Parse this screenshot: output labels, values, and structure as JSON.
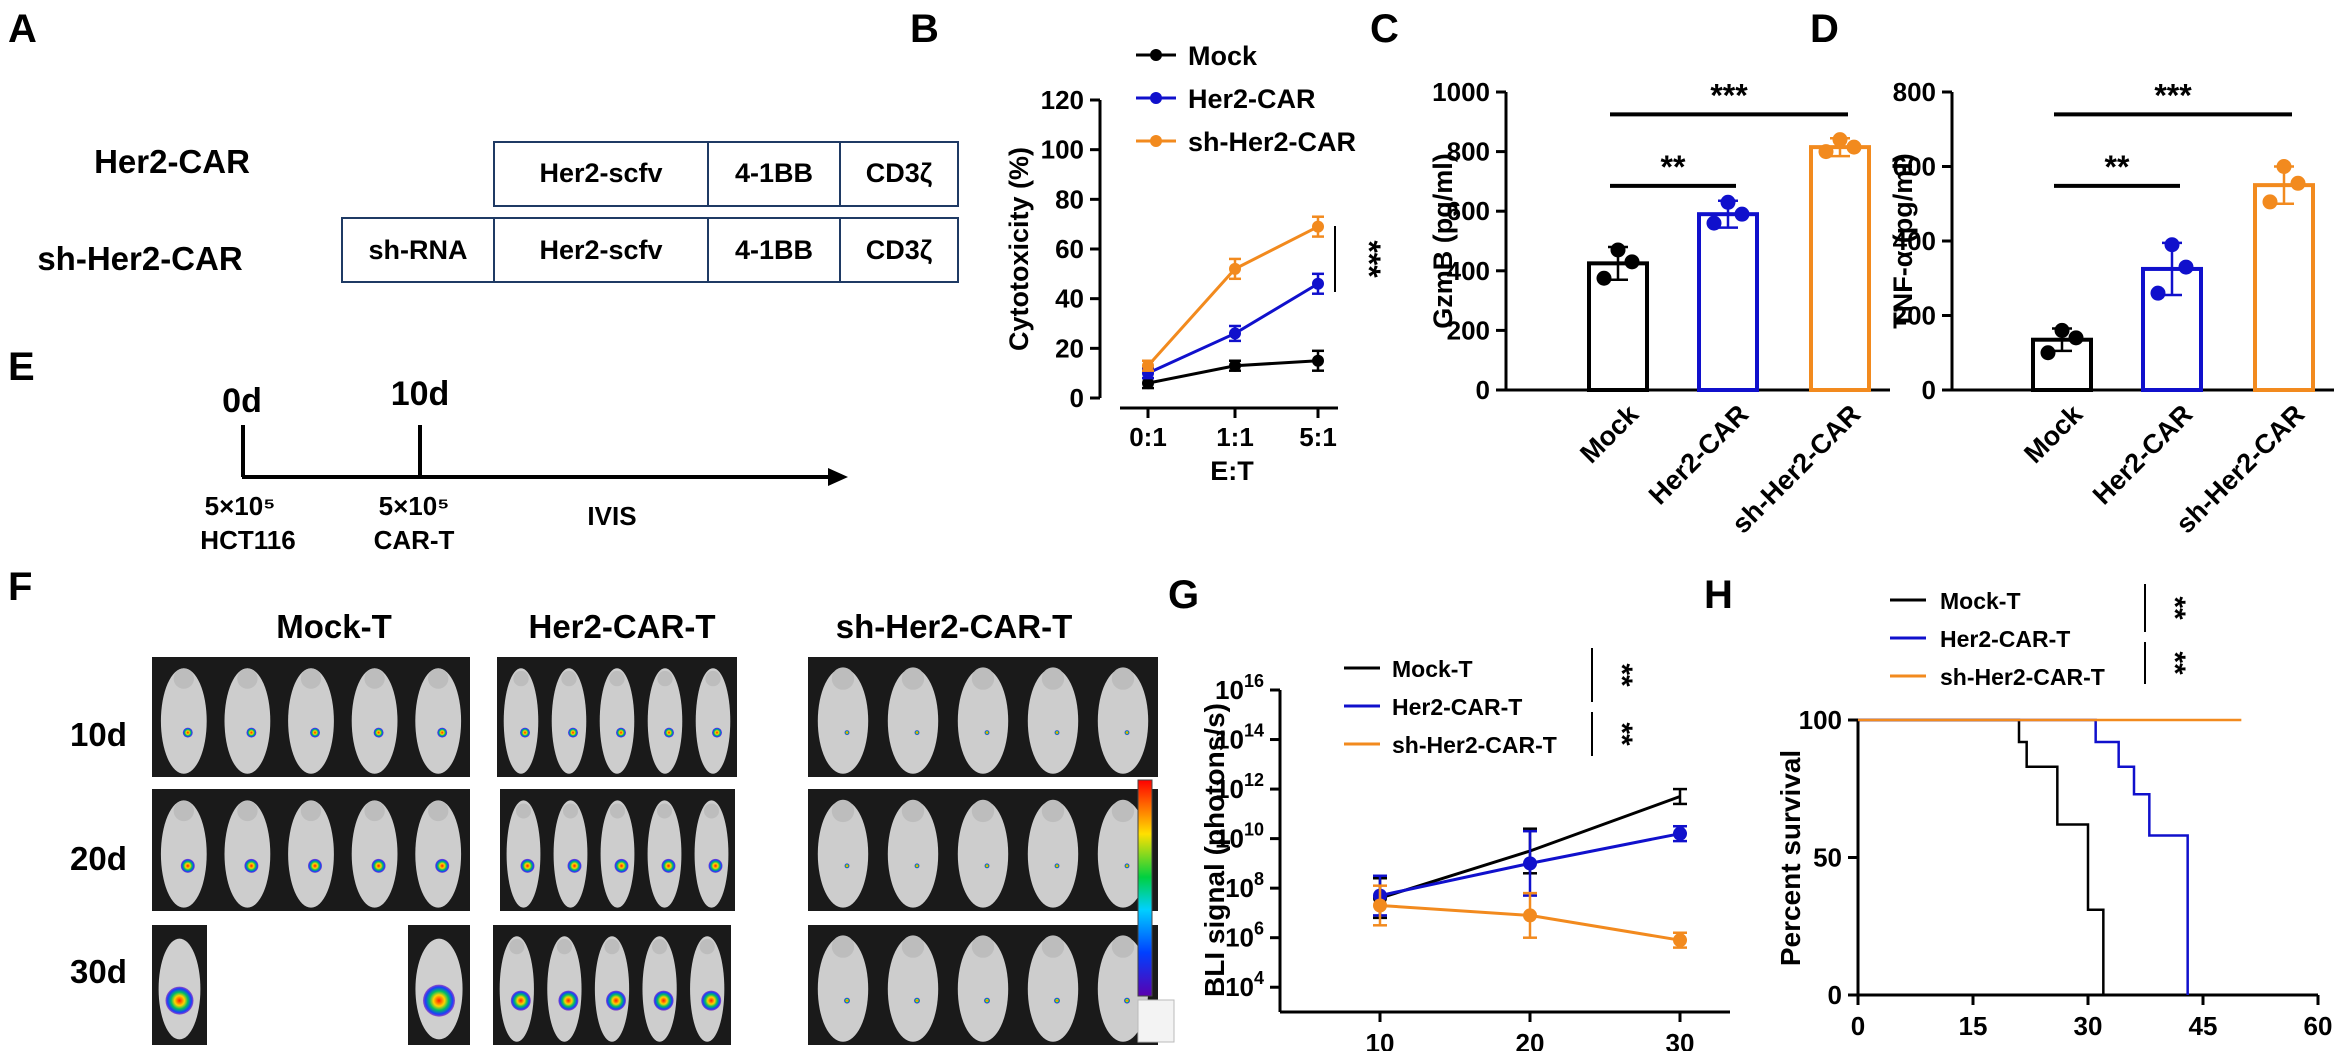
{
  "colors": {
    "mock": "#000000",
    "her2": "#1010cc",
    "sh": "#f28a1e",
    "box": "#1f3a64"
  },
  "panelA": {
    "letter": "A",
    "row1_label": "Her2-CAR",
    "row2_label": "sh-Her2-CAR",
    "row1_boxes": [
      "Her2-scfv",
      "4-1BB",
      "CD3ζ"
    ],
    "row2_boxes": [
      "sh-RNA",
      "Her2-scfv",
      "4-1BB",
      "CD3ζ"
    ]
  },
  "panelE": {
    "letter": "E",
    "t0": "0d",
    "t1": "10d",
    "t0_top": "5×10⁵",
    "t0_bottom": "HCT116",
    "t1_top": "5×10⁵",
    "t1_bottom": "CAR-T",
    "end_label": "IVIS"
  },
  "panelF": {
    "letter": "F",
    "groups": [
      "Mock-T",
      "Her2-CAR-T",
      "sh-Her2-CAR-T"
    ],
    "days": [
      "10d",
      "20d",
      "30d"
    ],
    "mice_present": {
      "10d": [
        5,
        5,
        5
      ],
      "20d": [
        5,
        5,
        5
      ],
      "30d": [
        2,
        5,
        5
      ]
    }
  },
  "panelB": {
    "letter": "B",
    "chart_data": {
      "type": "line",
      "title": "",
      "xlabel": "E:T",
      "ylabel": "Cytotoxicity (%)",
      "categories": [
        "0:1",
        "1:1",
        "5:1"
      ],
      "ylim": [
        0,
        120
      ],
      "yticks": [
        0,
        20,
        40,
        60,
        80,
        100,
        120
      ],
      "series": [
        {
          "name": "Mock",
          "color": "#000000",
          "values": [
            6,
            13,
            15
          ],
          "errors": [
            2,
            2,
            4
          ]
        },
        {
          "name": "Her2-CAR",
          "color": "#1010cc",
          "values": [
            10,
            26,
            46
          ],
          "errors": [
            2,
            3,
            4
          ]
        },
        {
          "name": "sh-Her2-CAR",
          "color": "#f28a1e",
          "values": [
            13,
            52,
            69
          ],
          "errors": [
            2,
            4,
            4
          ]
        }
      ],
      "annotation": "***"
    }
  },
  "panelC": {
    "letter": "C",
    "chart_data": {
      "type": "bar",
      "ylabel": "GzmB (pg/ml)",
      "categories": [
        "Mock",
        "Her2-CAR",
        "sh-Her2-CAR"
      ],
      "values": [
        425,
        590,
        815
      ],
      "errors": [
        55,
        45,
        30
      ],
      "points": [
        [
          470,
          430,
          375
        ],
        [
          630,
          590,
          560
        ],
        [
          840,
          815,
          800
        ]
      ],
      "ylim": [
        0,
        1000
      ],
      "yticks": [
        0,
        200,
        400,
        600,
        800,
        1000
      ],
      "significance": [
        {
          "from": 0,
          "to": 1,
          "label": "**"
        },
        {
          "from": 0,
          "to": 2,
          "label": "***"
        }
      ]
    }
  },
  "panelD": {
    "letter": "D",
    "chart_data": {
      "type": "bar",
      "ylabel": "TNF-α (pg/ml)",
      "categories": [
        "Mock",
        "Her2-CAR",
        "sh-Her2-CAR"
      ],
      "values": [
        135,
        325,
        550
      ],
      "errors": [
        30,
        70,
        50
      ],
      "points": [
        [
          160,
          140,
          100
        ],
        [
          390,
          330,
          260
        ],
        [
          600,
          555,
          505
        ]
      ],
      "ylim": [
        0,
        800
      ],
      "yticks": [
        0,
        200,
        400,
        600,
        800
      ],
      "significance": [
        {
          "from": 0,
          "to": 1,
          "label": "**"
        },
        {
          "from": 0,
          "to": 2,
          "label": "***"
        }
      ]
    }
  },
  "panelG": {
    "letter": "G",
    "chart_data": {
      "type": "line",
      "ylabel": "BLI signal (photons/s)",
      "x": [
        10,
        20,
        30
      ],
      "xticks": [
        "10",
        "20",
        "30"
      ],
      "yscale": "log10",
      "ylim_exp": [
        3,
        16
      ],
      "ytick_exp": [
        4,
        6,
        8,
        10,
        12,
        14,
        16
      ],
      "series": [
        {
          "name": "Mock-T",
          "color": "#000000",
          "log10_values": [
            7.6,
            9.5,
            11.7
          ]
        },
        {
          "name": "Her2-CAR-T",
          "color": "#1010cc",
          "log10_values": [
            7.7,
            9.0,
            10.2
          ]
        },
        {
          "name": "sh-Her2-CAR-T",
          "color": "#f28a1e",
          "log10_values": [
            7.3,
            6.9,
            5.9
          ]
        }
      ],
      "annotations": [
        "**",
        "**"
      ]
    }
  },
  "panelH": {
    "letter": "H",
    "chart_data": {
      "type": "line",
      "subtype": "survival",
      "ylabel": "Percent survival",
      "xlim": [
        0,
        60
      ],
      "xticks": [
        0,
        15,
        30,
        45,
        60
      ],
      "ylim": [
        0,
        100
      ],
      "yticks": [
        0,
        50,
        100
      ],
      "series": [
        {
          "name": "Mock-T",
          "color": "#000000",
          "steps": [
            [
              0,
              100
            ],
            [
              21,
              100
            ],
            [
              21,
              92
            ],
            [
              22,
              92
            ],
            [
              22,
              83
            ],
            [
              26,
              83
            ],
            [
              26,
              62
            ],
            [
              30,
              62
            ],
            [
              30,
              31
            ],
            [
              32,
              31
            ],
            [
              32,
              0
            ]
          ]
        },
        {
          "name": "Her2-CAR-T",
          "color": "#1010cc",
          "steps": [
            [
              0,
              100
            ],
            [
              31,
              100
            ],
            [
              31,
              92
            ],
            [
              34,
              92
            ],
            [
              34,
              83
            ],
            [
              36,
              83
            ],
            [
              36,
              73
            ],
            [
              38,
              73
            ],
            [
              38,
              58
            ],
            [
              43,
              58
            ],
            [
              43,
              0
            ]
          ]
        },
        {
          "name": "sh-Her2-CAR-T",
          "color": "#f28a1e",
          "steps": [
            [
              0,
              100
            ],
            [
              50,
              100
            ]
          ]
        }
      ],
      "annotations": [
        "**",
        "**"
      ]
    }
  }
}
